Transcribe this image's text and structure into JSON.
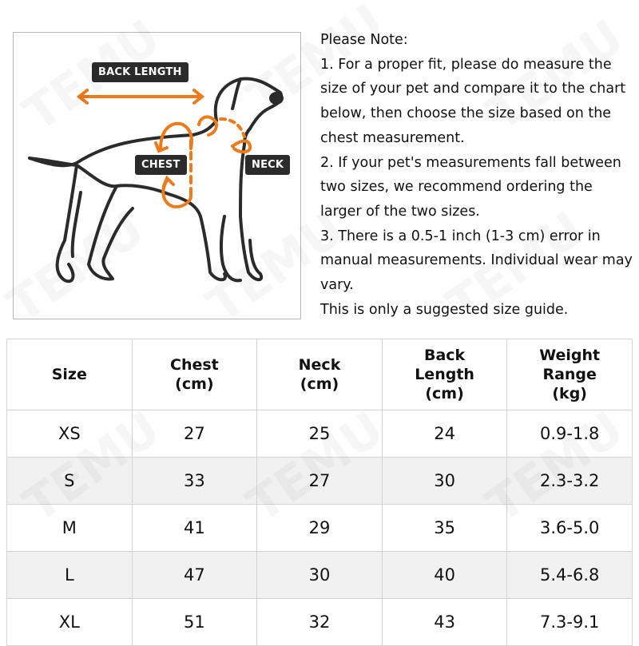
{
  "watermark": "TEMU",
  "diagram": {
    "labels": {
      "back_length": "BACK LENGTH",
      "chest": "CHEST",
      "neck": "NECK"
    },
    "colors": {
      "arrow": "#ef7a1a",
      "outline": "#2b2b2b",
      "tag_bg": "#2b2b2b"
    }
  },
  "note": {
    "title": "Please Note:",
    "items": [
      "1. For a proper fit, please do measure the size of your pet and compare it to the chart below, then choose the size based on the chest measurement.",
      "2. If your pet's measurements fall between two sizes, we recommend ordering the larger of the two sizes.",
      "3. There is a 0.5-1 inch (1-3 cm) error in manual measurements. Individual wear may vary.",
      "This is only a suggested size guide."
    ]
  },
  "table": {
    "headers": [
      [
        "Size"
      ],
      [
        "Chest",
        "(cm)"
      ],
      [
        "Neck",
        "(cm)"
      ],
      [
        "Back",
        "Length",
        "(cm)"
      ],
      [
        "Weight",
        "Range",
        "(kg)"
      ]
    ],
    "rows": [
      [
        "XS",
        "27",
        "25",
        "24",
        "0.9-1.8"
      ],
      [
        "S",
        "33",
        "27",
        "30",
        "2.3-3.2"
      ],
      [
        "M",
        "41",
        "29",
        "35",
        "3.6-5.0"
      ],
      [
        "L",
        "47",
        "30",
        "40",
        "5.4-6.8"
      ],
      [
        "XL",
        "51",
        "32",
        "43",
        "7.3-9.1"
      ]
    ]
  }
}
